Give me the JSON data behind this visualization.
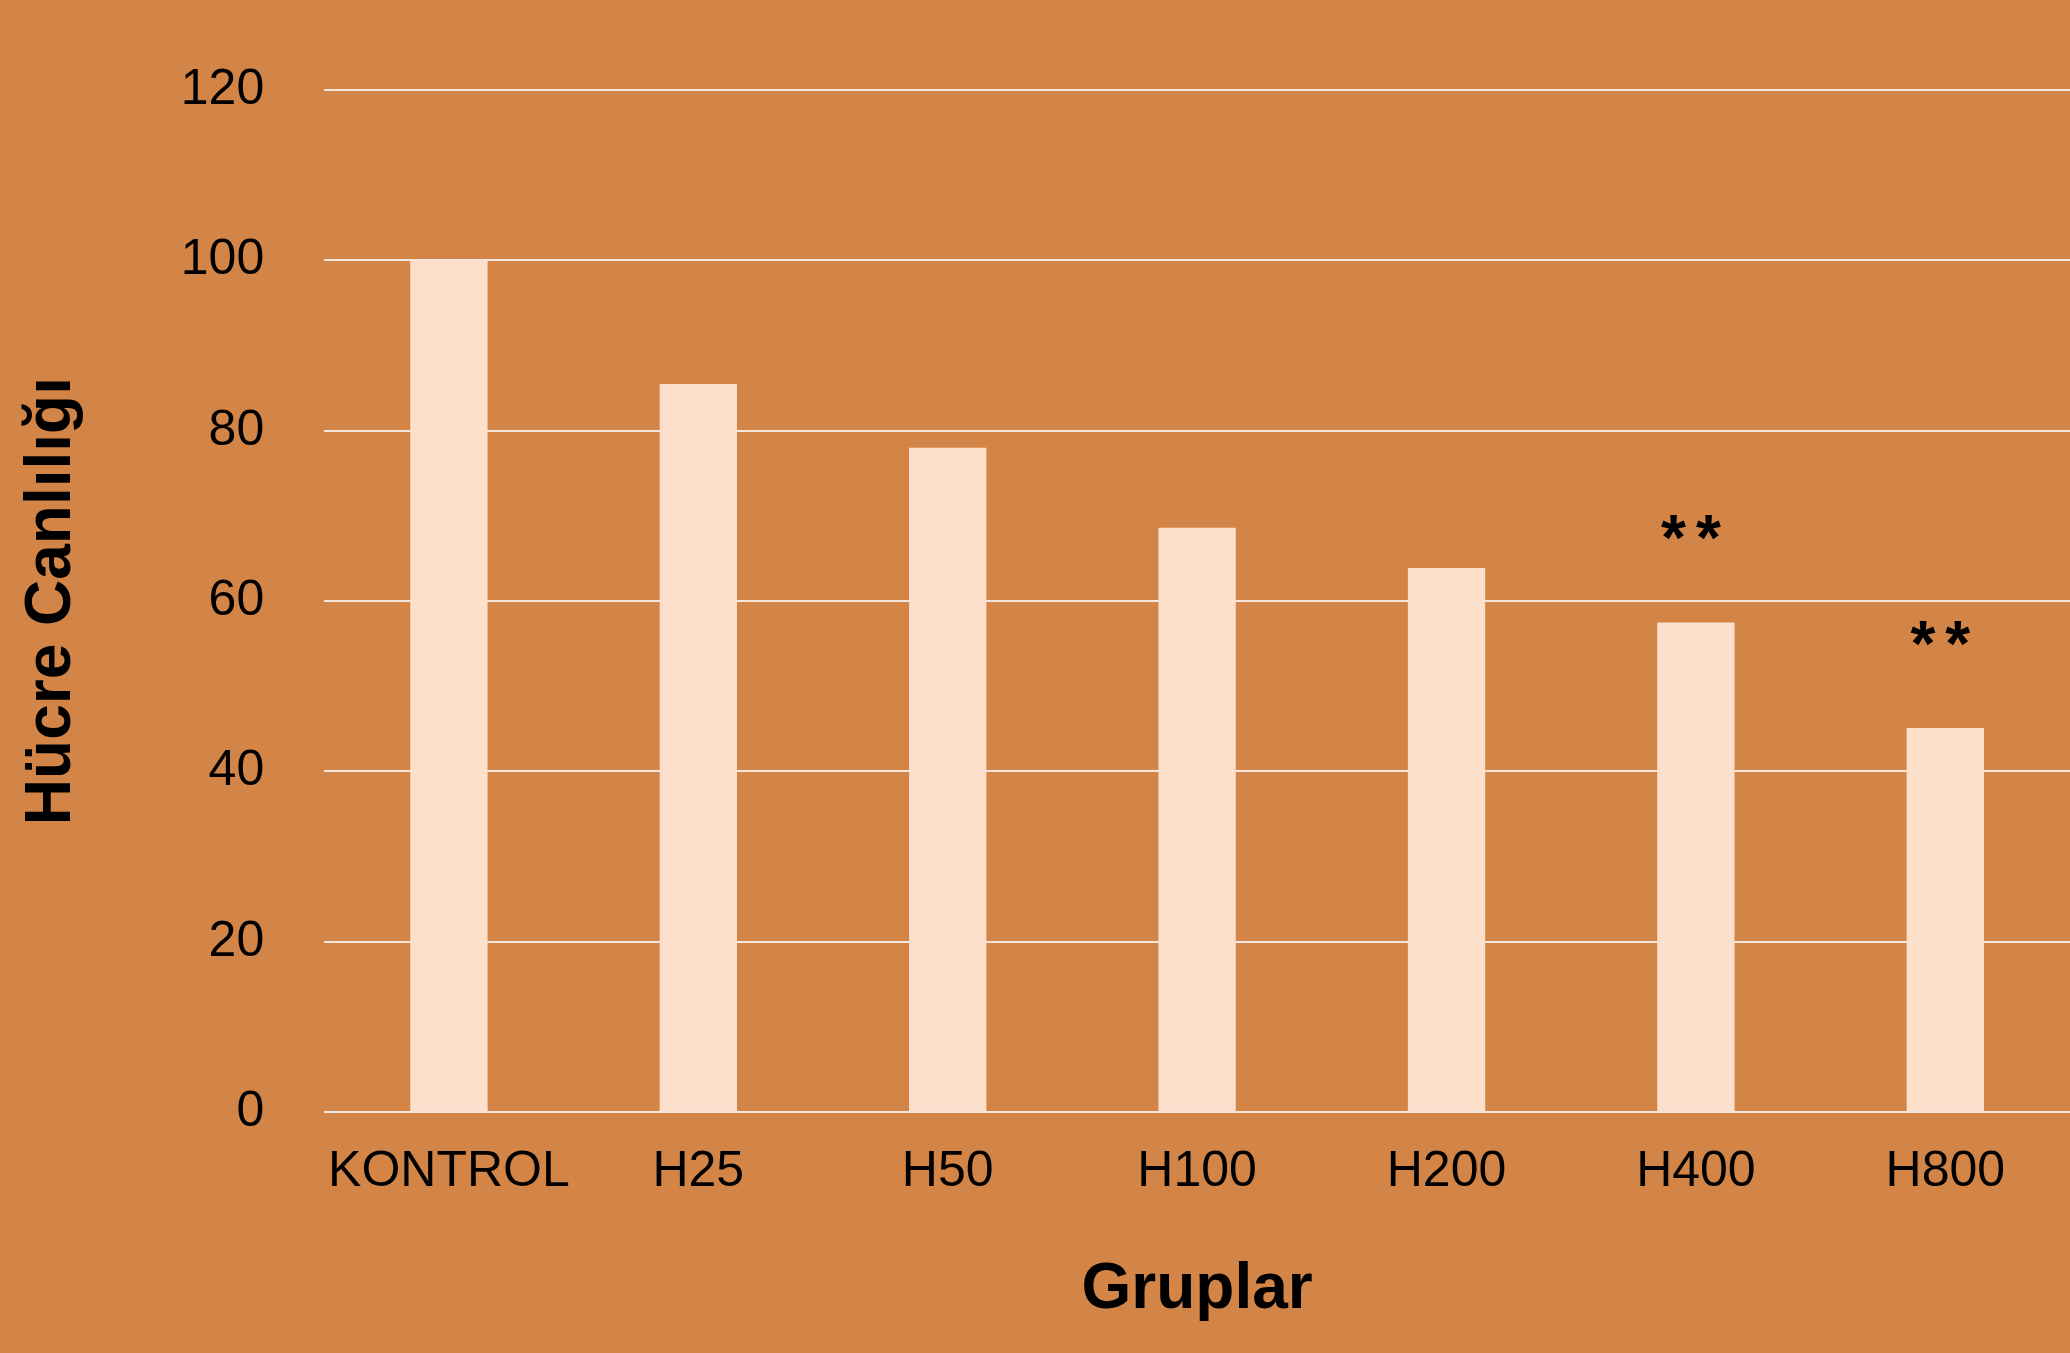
{
  "chart_data": {
    "type": "bar",
    "xlabel": "Gruplar",
    "ylabel": "Hücre Canlılığı",
    "categories": [
      "KONTROL",
      "H25",
      "H50",
      "H100",
      "H200",
      "H400",
      "H800"
    ],
    "values": [
      100,
      85.5,
      78,
      68.6,
      63.9,
      57.5,
      45.1
    ],
    "color": "#fde0cb",
    "ylim": [
      0,
      120
    ],
    "yticks": [
      0,
      20,
      40,
      60,
      80,
      100,
      120
    ],
    "grid": "y",
    "legend": false,
    "annotations": [
      "**",
      "**"
    ]
  }
}
